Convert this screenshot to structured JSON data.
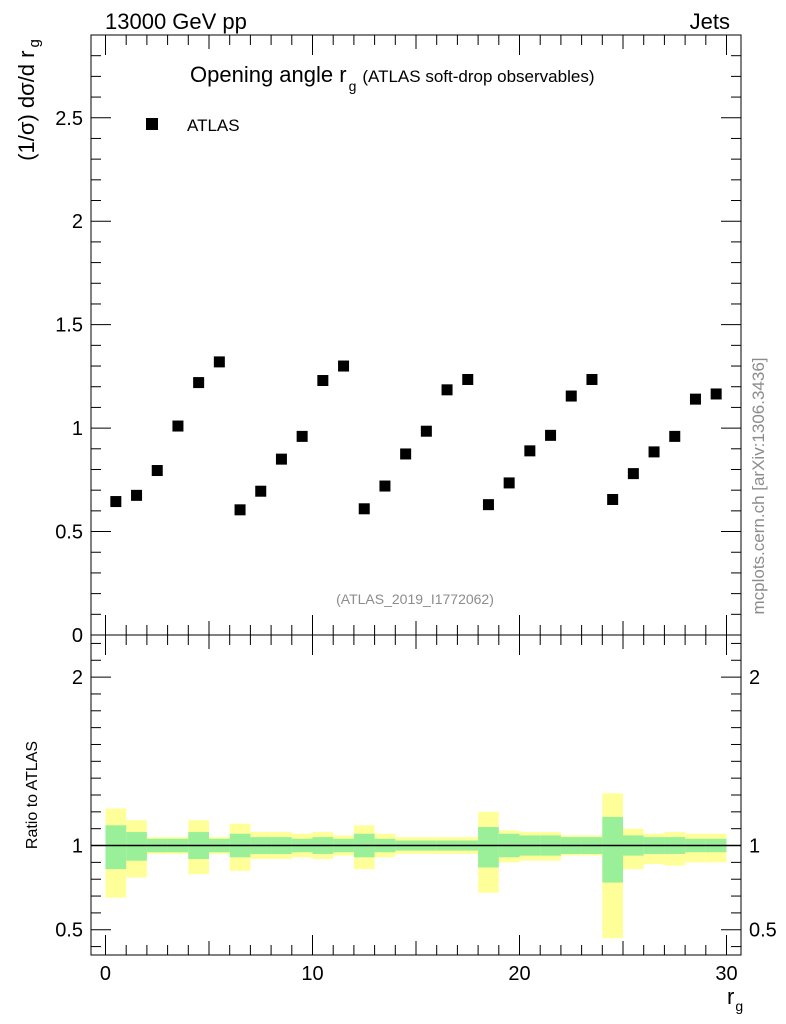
{
  "header": {
    "left": "13000 GeV pp",
    "right": "Jets"
  },
  "side_label": "mcplots.cern.ch [arXiv:1306.3436]",
  "chart_data": [
    {
      "type": "scatter",
      "title_main": "Opening angle r",
      "title_sub": "g",
      "title_extra": "(ATLAS soft-drop observables)",
      "ylabel_main": "(1/σ) dσ/d r",
      "ylabel_sub": "g",
      "xlim": [
        -0.7,
        30.7
      ],
      "ylim": [
        0,
        2.9
      ],
      "yticks": [
        0.5,
        1,
        1.5,
        2,
        2.5
      ],
      "yticklabels": [
        "0.5",
        "1",
        "1.5",
        "2",
        "2.5"
      ],
      "ytick_zero_label": "0",
      "legend": {
        "label": "ATLAS",
        "placement": "top-left"
      },
      "watermark": "(ATLAS_2019_I1772062)",
      "series": [
        {
          "name": "ATLAS",
          "x": [
            0.5,
            1.5,
            2.5,
            3.5,
            4.5,
            5.5,
            6.5,
            7.5,
            8.5,
            9.5,
            10.5,
            11.5,
            12.5,
            13.5,
            14.5,
            15.5,
            16.5,
            17.5,
            18.5,
            19.5,
            20.5,
            21.5,
            22.5,
            23.5,
            24.5,
            25.5,
            26.5,
            27.5,
            28.5,
            29.5
          ],
          "y": [
            0.645,
            0.675,
            0.795,
            1.01,
            1.22,
            1.32,
            0.605,
            0.695,
            0.85,
            0.96,
            1.23,
            1.3,
            0.61,
            0.72,
            0.875,
            0.985,
            1.185,
            1.235,
            0.63,
            0.735,
            0.89,
            0.965,
            1.155,
            1.235,
            0.655,
            0.78,
            0.885,
            0.96,
            1.14,
            1.165
          ]
        }
      ]
    },
    {
      "type": "area",
      "ylabel": "Ratio to ATLAS",
      "xlabel_main": "r",
      "xlabel_sub": "g",
      "xlim": [
        -0.7,
        30.7
      ],
      "ylim": [
        0.35,
        2.25
      ],
      "xticks": [
        0,
        10,
        20,
        30
      ],
      "xticklabels": [
        "0",
        "10",
        "20",
        "30"
      ],
      "yticks": [
        0.5,
        1,
        2
      ],
      "yticklabels": [
        "0.5",
        "1",
        "2"
      ],
      "reference_line": 1,
      "bins": [
        [
          0,
          1
        ],
        [
          1,
          2
        ],
        [
          2,
          3
        ],
        [
          3,
          4
        ],
        [
          4,
          5
        ],
        [
          5,
          6
        ],
        [
          6,
          7
        ],
        [
          7,
          8
        ],
        [
          8,
          9
        ],
        [
          9,
          10
        ],
        [
          10,
          11
        ],
        [
          11,
          12
        ],
        [
          12,
          13
        ],
        [
          13,
          14
        ],
        [
          14,
          15
        ],
        [
          15,
          16
        ],
        [
          16,
          17
        ],
        [
          17,
          18
        ],
        [
          18,
          19
        ],
        [
          19,
          20
        ],
        [
          20,
          21
        ],
        [
          21,
          22
        ],
        [
          22,
          23
        ],
        [
          23,
          24
        ],
        [
          24,
          25
        ],
        [
          25,
          26
        ],
        [
          26,
          27
        ],
        [
          27,
          28
        ],
        [
          28,
          29
        ],
        [
          29,
          30
        ]
      ],
      "band_stat_lo": [
        0.86,
        0.91,
        0.96,
        0.96,
        0.92,
        0.96,
        0.93,
        0.95,
        0.95,
        0.96,
        0.95,
        0.96,
        0.93,
        0.96,
        0.97,
        0.97,
        0.97,
        0.97,
        0.87,
        0.93,
        0.94,
        0.94,
        0.95,
        0.95,
        0.78,
        0.94,
        0.95,
        0.95,
        0.96,
        0.96
      ],
      "band_stat_hi": [
        1.12,
        1.08,
        1.04,
        1.04,
        1.08,
        1.04,
        1.07,
        1.05,
        1.05,
        1.04,
        1.05,
        1.04,
        1.07,
        1.04,
        1.03,
        1.03,
        1.03,
        1.03,
        1.11,
        1.07,
        1.06,
        1.06,
        1.05,
        1.05,
        1.17,
        1.06,
        1.05,
        1.05,
        1.04,
        1.04
      ],
      "band_total_lo": [
        0.69,
        0.81,
        0.95,
        0.95,
        0.83,
        0.95,
        0.85,
        0.92,
        0.92,
        0.93,
        0.92,
        0.94,
        0.86,
        0.93,
        0.95,
        0.95,
        0.95,
        0.95,
        0.72,
        0.9,
        0.91,
        0.91,
        0.94,
        0.94,
        0.45,
        0.86,
        0.89,
        0.88,
        0.9,
        0.9
      ],
      "band_total_hi": [
        1.22,
        1.15,
        1.05,
        1.05,
        1.15,
        1.05,
        1.13,
        1.08,
        1.08,
        1.07,
        1.08,
        1.06,
        1.12,
        1.07,
        1.05,
        1.05,
        1.05,
        1.05,
        1.2,
        1.09,
        1.08,
        1.08,
        1.06,
        1.06,
        1.31,
        1.1,
        1.07,
        1.08,
        1.07,
        1.07
      ]
    }
  ]
}
